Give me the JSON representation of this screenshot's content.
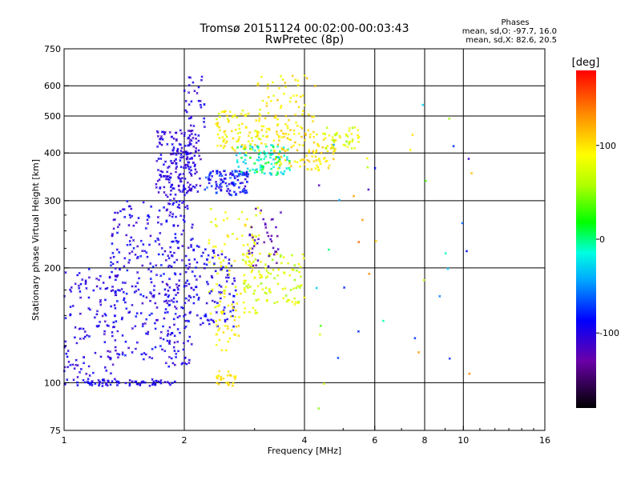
{
  "header": {
    "title_line1": "Tromsø 20151124 00:02:00-00:03:43",
    "title_line2": "RwPretec (8p)",
    "phase_title": "Phases",
    "phase_o": "mean, sd,O: -97.7, 16.0",
    "phase_x": "mean, sd,X:  82.6, 20.5"
  },
  "colorbar": {
    "unit": "[deg]",
    "ticks": [
      {
        "label": "100",
        "value": 100
      },
      {
        "label": "0",
        "value": 0
      },
      {
        "label": "-100",
        "value": -100
      }
    ],
    "range": [
      -180,
      180
    ]
  },
  "chart_data": {
    "type": "scatter",
    "xlabel": "Frequency [MHz]",
    "ylabel": "Stationary phase Virtual Height [km]",
    "xscale": "log",
    "yscale": "log",
    "xlim": [
      1,
      16
    ],
    "ylim": [
      75,
      750
    ],
    "x_ticks": [
      {
        "label": "1",
        "value": 1
      },
      {
        "label": "2",
        "value": 2
      },
      {
        "label": "4",
        "value": 4
      },
      {
        "label": "6",
        "value": 6
      },
      {
        "label": "8",
        "value": 8
      },
      {
        "label": "10",
        "value": 10
      },
      {
        "label": "16",
        "value": 16
      }
    ],
    "y_ticks": [
      {
        "label": "75",
        "value": 75
      },
      {
        "label": "100",
        "value": 100
      },
      {
        "label": "200",
        "value": 200
      },
      {
        "label": "300",
        "value": 300
      },
      {
        "label": "400",
        "value": 400
      },
      {
        "label": "500",
        "value": 500
      },
      {
        "label": "600",
        "value": 600
      },
      {
        "label": "750",
        "value": 750
      }
    ],
    "grid_x": [
      2,
      4,
      6,
      8,
      10
    ],
    "grid_y": [
      100,
      200,
      300,
      400,
      500,
      600
    ],
    "color_by": "phase",
    "clusters": [
      {
        "x": [
          1.0,
          1.9
        ],
        "y": [
          98,
          102
        ],
        "phase": [
          -110,
          -85
        ],
        "n": 70
      },
      {
        "x": [
          1.0,
          1.35
        ],
        "y": [
          100,
          200
        ],
        "phase": [
          -115,
          -85
        ],
        "n": 130
      },
      {
        "x": [
          1.3,
          1.95
        ],
        "y": [
          115,
          300
        ],
        "phase": [
          -115,
          -80
        ],
        "n": 260
      },
      {
        "x": [
          1.8,
          2.1
        ],
        "y": [
          110,
          430
        ],
        "phase": [
          -115,
          -85
        ],
        "n": 150
      },
      {
        "x": [
          1.7,
          2.2
        ],
        "y": [
          315,
          460
        ],
        "phase": [
          -120,
          -90
        ],
        "n": 170
      },
      {
        "x": [
          2.0,
          2.25
        ],
        "y": [
          450,
          640
        ],
        "phase": [
          -115,
          -90
        ],
        "n": 30
      },
      {
        "x": [
          2.25,
          2.9
        ],
        "y": [
          310,
          360
        ],
        "phase": [
          -110,
          -60
        ],
        "n": 110
      },
      {
        "x": [
          2.7,
          3.7
        ],
        "y": [
          350,
          420
        ],
        "phase": [
          -40,
          20
        ],
        "n": 100
      },
      {
        "x": [
          2.4,
          3.2
        ],
        "y": [
          400,
          520
        ],
        "phase": [
          70,
          110
        ],
        "n": 90
      },
      {
        "x": [
          3.3,
          4.8
        ],
        "y": [
          360,
          450
        ],
        "phase": [
          85,
          115
        ],
        "n": 100
      },
      {
        "x": [
          3.0,
          4.3
        ],
        "y": [
          430,
          640
        ],
        "phase": [
          80,
          115
        ],
        "n": 90
      },
      {
        "x": [
          4.5,
          5.5
        ],
        "y": [
          410,
          470
        ],
        "phase": [
          50,
          100
        ],
        "n": 40
      },
      {
        "x": [
          2.3,
          3.1
        ],
        "y": [
          150,
          290
        ],
        "phase": [
          70,
          105
        ],
        "n": 90
      },
      {
        "x": [
          2.0,
          2.7
        ],
        "y": [
          140,
          230
        ],
        "phase": [
          -110,
          -80
        ],
        "n": 110
      },
      {
        "x": [
          2.8,
          4.0
        ],
        "y": [
          160,
          220
        ],
        "phase": [
          50,
          95
        ],
        "n": 110
      },
      {
        "x": [
          2.9,
          3.5
        ],
        "y": [
          200,
          290
        ],
        "phase": [
          -140,
          -110
        ],
        "n": 40
      },
      {
        "x": [
          2.4,
          2.75
        ],
        "y": [
          120,
          165
        ],
        "phase": [
          85,
          110
        ],
        "n": 35
      },
      {
        "x": [
          2.4,
          2.7
        ],
        "y": [
          98,
          108
        ],
        "phase": [
          90,
          110
        ],
        "n": 25
      },
      {
        "x": [
          4.2,
          10.5
        ],
        "y": [
          85,
          550
        ],
        "phase": [
          -120,
          150
        ],
        "n": 40
      }
    ]
  }
}
